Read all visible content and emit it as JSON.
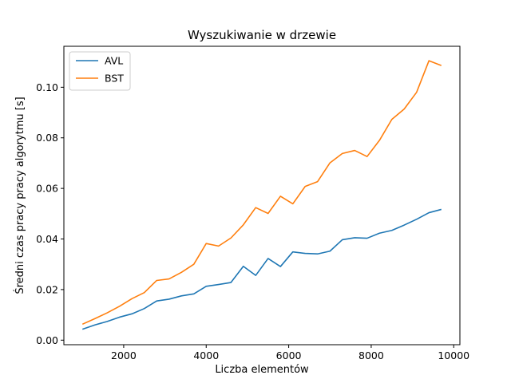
{
  "chart_data": {
    "type": "line",
    "title": "Wyszukiwanie w drzewie",
    "xlabel": "Liczba elementów",
    "ylabel": "Średni czas pracy pracy algorytmu [s]",
    "xlim": [
      550,
      10150
    ],
    "ylim": [
      -0.0018,
      0.1162
    ],
    "xticks": [
      2000,
      4000,
      6000,
      8000,
      10000
    ],
    "xtick_labels": [
      "2000",
      "4000",
      "6000",
      "8000",
      "10000"
    ],
    "yticks": [
      0.0,
      0.02,
      0.04,
      0.06,
      0.08,
      0.1
    ],
    "ytick_labels": [
      "0.00",
      "0.02",
      "0.04",
      "0.06",
      "0.08",
      "0.10"
    ],
    "grid": false,
    "legend_position": "top-left",
    "x": [
      1000,
      1300,
      1600,
      1900,
      2200,
      2500,
      2800,
      3100,
      3400,
      3700,
      4000,
      4300,
      4600,
      4900,
      5200,
      5500,
      5800,
      6100,
      6400,
      6700,
      7000,
      7300,
      7600,
      7900,
      8200,
      8500,
      8800,
      9100,
      9400,
      9700
    ],
    "series": [
      {
        "name": "AVL",
        "color": "#1f77b4",
        "values": [
          0.0043,
          0.006,
          0.0074,
          0.0091,
          0.0104,
          0.0125,
          0.0155,
          0.0162,
          0.0175,
          0.0183,
          0.0213,
          0.022,
          0.0228,
          0.0292,
          0.0256,
          0.0323,
          0.0291,
          0.0349,
          0.0343,
          0.0341,
          0.0352,
          0.0397,
          0.0405,
          0.0403,
          0.0423,
          0.0434,
          0.0455,
          0.0478,
          0.0504,
          0.0517
        ]
      },
      {
        "name": "BST",
        "color": "#ff7f0e",
        "values": [
          0.0063,
          0.0085,
          0.0108,
          0.0134,
          0.0164,
          0.0188,
          0.0236,
          0.0242,
          0.0268,
          0.03,
          0.0382,
          0.0372,
          0.0404,
          0.0456,
          0.0524,
          0.0501,
          0.0569,
          0.0539,
          0.0608,
          0.0627,
          0.0701,
          0.0738,
          0.075,
          0.0726,
          0.079,
          0.0873,
          0.0914,
          0.098,
          0.1105,
          0.1086
        ]
      }
    ]
  }
}
